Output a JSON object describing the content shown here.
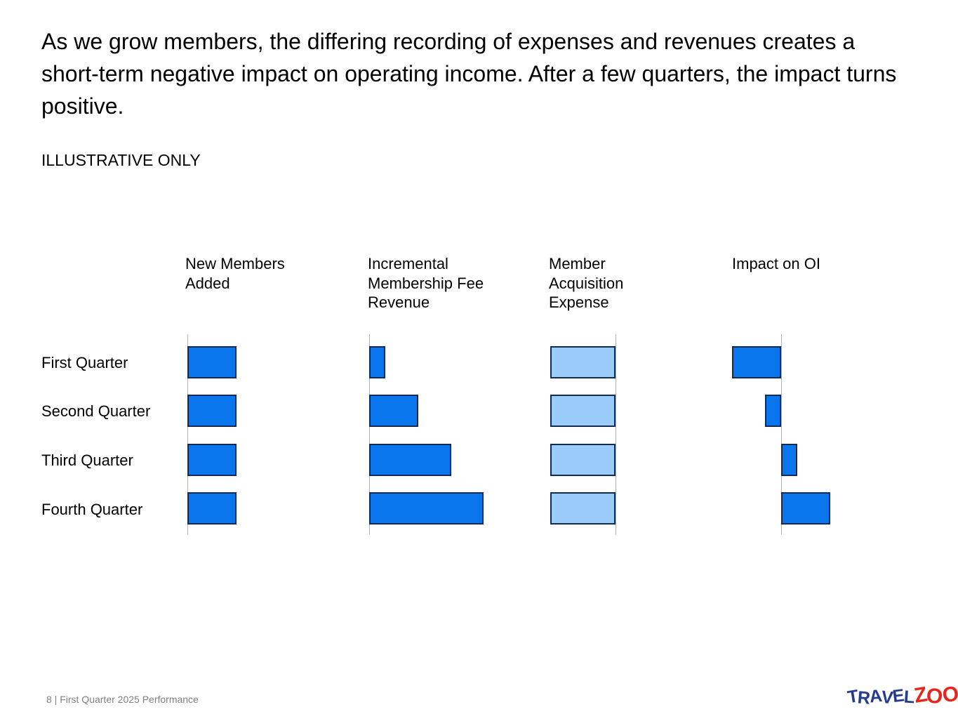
{
  "slide": {
    "title": "As we grow members, the differing recording of expenses and revenues creates a short-term negative impact on operating income. After a few quarters, the impact turns positive.",
    "illustrative_label": "ILLUSTRATIVE ONLY",
    "footer": "8 | First Quarter 2025 Performance",
    "logo": {
      "travel": "TRAVEL",
      "zoo": "ZOO",
      "registered": "®",
      "travel_color": "#253b8f",
      "zoo_color": "#e8251c"
    }
  },
  "chart_data": {
    "type": "bar",
    "orientation": "horizontal",
    "title": "",
    "categories": [
      "First Quarter",
      "Second Quarter",
      "Third Quarter",
      "Fourth Quarter"
    ],
    "series": [
      {
        "name": "New Members Added",
        "values": [
          3,
          3,
          3,
          3
        ],
        "color": "#0a76ee"
      },
      {
        "name": "Incremental Membership Fee Revenue",
        "values": [
          1,
          3,
          5,
          7
        ],
        "color": "#0a76ee"
      },
      {
        "name": "Member Acquisition Expense",
        "values": [
          -4,
          -4,
          -4,
          -4
        ],
        "color": "#99ccf8"
      },
      {
        "name": "Impact on OI",
        "values": [
          -3,
          -1,
          1,
          3
        ],
        "color": "#0a76ee"
      }
    ],
    "value_unit": "illustrative relative units (no numeric axis shown)",
    "notes": "Four small-multiple horizontal bar panels sharing the same quarter rows. Expense bars extend left of their axis (negative); Impact on OI is negative in Q1 and Q2, positive in Q3 and Q4. Impact equals Revenue minus Expense.",
    "legend": "none",
    "grid": "off",
    "bar_fill_dark": "#0a76ee",
    "bar_fill_light": "#99ccf8",
    "bar_border_color": "#112b52",
    "axis_line_color": "#b2b2b2"
  }
}
